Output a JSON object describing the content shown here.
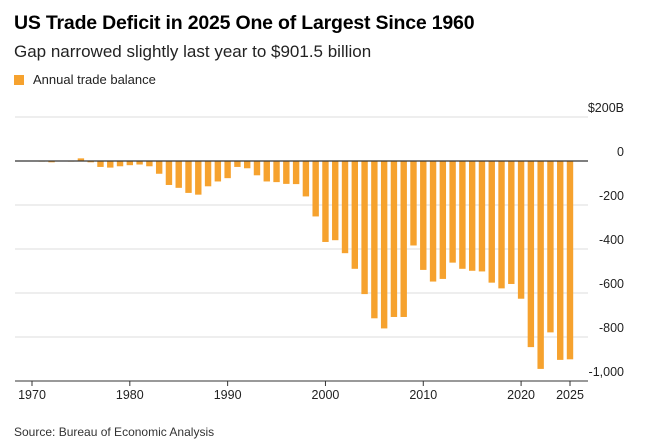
{
  "title": "US Trade Deficit in 2025 One of Largest Since 1960",
  "subtitle": "Gap narrowed slightly last year to $901.5 billion",
  "legend": {
    "label": "Annual trade balance",
    "color": "#f6a22e"
  },
  "source": "Source: Bureau of Economic Analysis",
  "colors": {
    "bar": "#f6a22e",
    "grid": "#dddddd",
    "zero_line": "#333333",
    "axis": "#333333"
  },
  "chart_data": {
    "type": "bar",
    "title": "US Trade Deficit in 2025 One of Largest Since 1960",
    "subtitle": "Gap narrowed slightly last year to $901.5 billion",
    "xlabel": "",
    "ylabel": "",
    "ylim": [
      -1000,
      200
    ],
    "yticks": [
      200,
      0,
      -200,
      -400,
      -600,
      -800,
      -1000
    ],
    "ytick_labels": [
      "$200B",
      "0",
      "-200",
      "-400",
      "-600",
      "-800",
      "-1,000"
    ],
    "xlim": [
      1969.5,
      2025.5
    ],
    "xticks": [
      1970,
      1980,
      1990,
      2000,
      2010,
      2020,
      2025
    ],
    "xtick_labels": [
      "1970",
      "1980",
      "1990",
      "2000",
      "2010",
      "2020",
      "2025"
    ],
    "grid": true,
    "legend_position": "top-left",
    "series": [
      {
        "name": "Annual trade balance",
        "x": [
          1970,
          1971,
          1972,
          1973,
          1974,
          1975,
          1976,
          1977,
          1978,
          1979,
          1980,
          1981,
          1982,
          1983,
          1984,
          1985,
          1986,
          1987,
          1988,
          1989,
          1990,
          1991,
          1992,
          1993,
          1994,
          1995,
          1996,
          1997,
          1998,
          1999,
          2000,
          2001,
          2002,
          2003,
          2004,
          2005,
          2006,
          2007,
          2008,
          2009,
          2010,
          2011,
          2012,
          2013,
          2014,
          2015,
          2016,
          2017,
          2018,
          2019,
          2020,
          2021,
          2022,
          2023,
          2024,
          2025
        ],
        "values": [
          2,
          -1,
          -6,
          2,
          -2,
          12,
          -6,
          -27,
          -30,
          -24,
          -19,
          -16,
          -24,
          -58,
          -109,
          -122,
          -145,
          -153,
          -115,
          -93,
          -78,
          -27,
          -33,
          -65,
          -93,
          -96,
          -104,
          -105,
          -161,
          -252,
          -368,
          -360,
          -419,
          -490,
          -605,
          -715,
          -761,
          -709,
          -709,
          -384,
          -495,
          -548,
          -536,
          -462,
          -490,
          -499,
          -502,
          -553,
          -579,
          -559,
          -626,
          -846,
          -945,
          -779,
          -904,
          -901.5
        ]
      }
    ]
  }
}
